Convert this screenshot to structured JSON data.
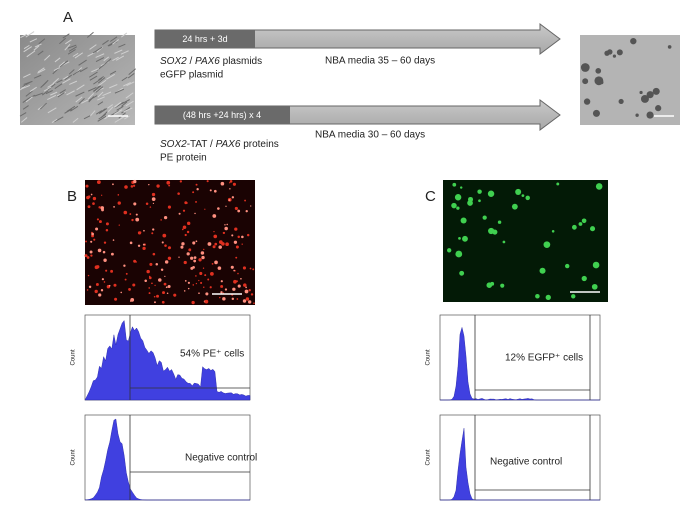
{
  "panels": {
    "a": "A",
    "b": "B",
    "c": "C"
  },
  "top_arrow": {
    "box": "24 hrs + 3d",
    "media": "NBA media 35 – 60 days",
    "line1": [
      "SOX2",
      " / ",
      "PAX6",
      " plasmids"
    ],
    "line2": "eGFP plasmid"
  },
  "bottom_arrow": {
    "box": "(48 hrs +24 hrs) x 4",
    "media": "NBA media 30 – 60 days",
    "line1": [
      "SOX2",
      "-TAT / ",
      "PAX6",
      " proteins"
    ],
    "line2": "PE protein"
  },
  "histograms": [
    {
      "axis": "Count",
      "label": "54% PE⁺ cells"
    },
    {
      "axis": "Count",
      "label": "Negative control"
    },
    {
      "axis": "Count",
      "label": "12% EGFP⁺ cells"
    },
    {
      "axis": "Count",
      "label": "Negative control"
    }
  ]
}
